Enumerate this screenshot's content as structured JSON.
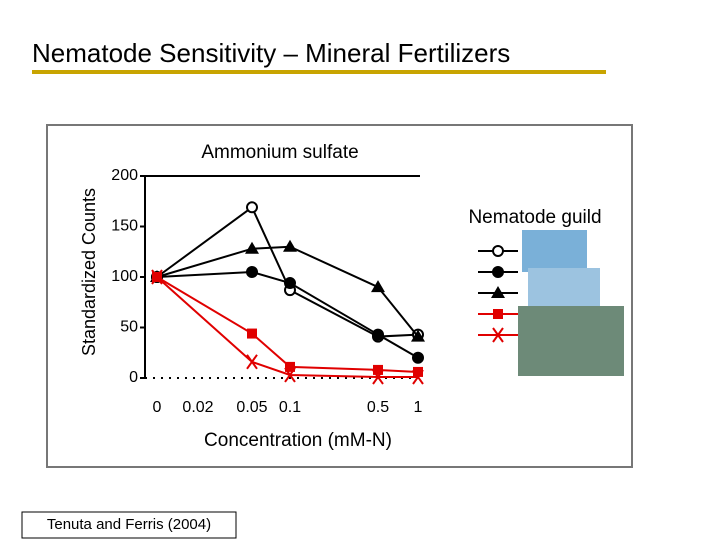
{
  "chart_data": {
    "type": "line",
    "title": "Nematode Sensitivity – Mineral Fertilizers",
    "subtitle": "Ammonium sulfate",
    "ylabel": "Standardized Counts",
    "xlabel": "Concentration (mM-N)",
    "legend_title": "Nematode guild",
    "source": "Tenuta and Ferris (2004)",
    "categories": [
      "0",
      "0.02",
      "0.05",
      "0.1",
      "0.5",
      "1"
    ],
    "series": [
      {
        "color": "#000000",
        "marker": "circle-open",
        "values": [
          100,
          null,
          169,
          87,
          41,
          43
        ]
      },
      {
        "color": "#000000",
        "marker": "circle",
        "values": [
          100,
          null,
          105,
          94,
          43,
          20
        ]
      },
      {
        "color": "#000000",
        "marker": "triangle",
        "values": [
          100,
          null,
          128,
          130,
          90,
          41
        ]
      },
      {
        "color": "#e00000",
        "marker": "square",
        "values": [
          100,
          null,
          44,
          11,
          8,
          6
        ]
      },
      {
        "color": "#e00000",
        "marker": "x",
        "values": [
          100,
          null,
          16,
          3,
          1,
          1
        ]
      }
    ],
    "ylim": [
      0,
      200
    ],
    "yticks": [
      0,
      50,
      100,
      150,
      200
    ]
  }
}
